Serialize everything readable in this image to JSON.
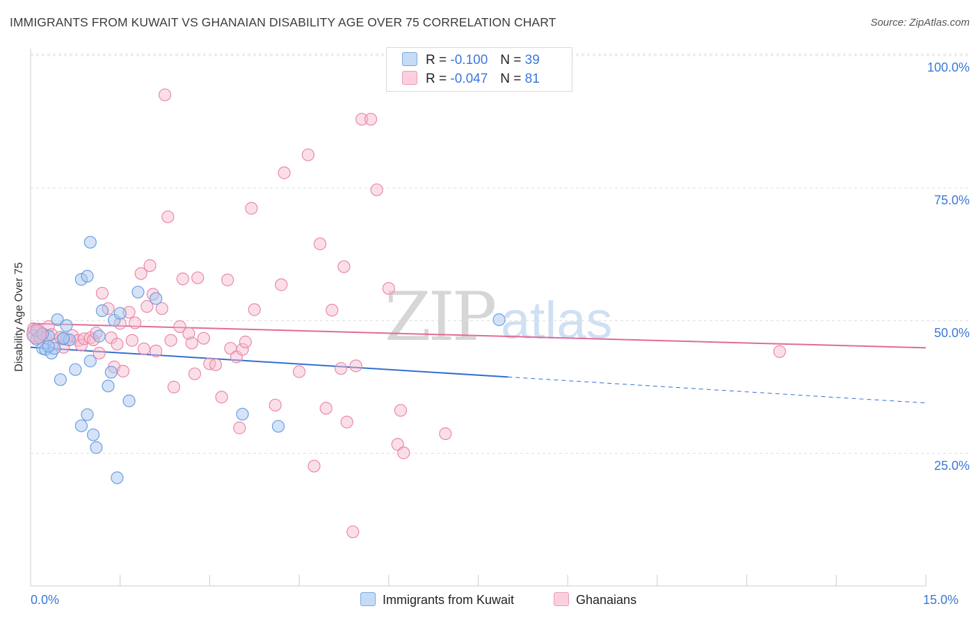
{
  "title": "IMMIGRANTS FROM KUWAIT VS GHANAIAN DISABILITY AGE OVER 75 CORRELATION CHART",
  "source": "Source: ZipAtlas.com",
  "watermark": {
    "zip": "ZIP",
    "atlas": "atlas"
  },
  "legend": {
    "rows": [
      {
        "r_label": "R =",
        "r_value": "-0.100",
        "n_label": "N =",
        "n_value": "39"
      },
      {
        "r_label": "R =",
        "r_value": "-0.047",
        "n_label": "N =",
        "n_value": "81"
      }
    ]
  },
  "bottom_legend": [
    "Immigrants from Kuwait",
    "Ghanaians"
  ],
  "colors": {
    "blue_fill": "#a9c8f0",
    "blue_stroke": "#6a9fe0",
    "blue_line": "#2f6fd0",
    "pink_fill": "#f6b8cc",
    "pink_stroke": "#ea87a8",
    "pink_line": "#e06a96",
    "tick_text": "#3a78d8",
    "grid": "#dddddd"
  },
  "chart_data": {
    "type": "scatter",
    "title": "IMMIGRANTS FROM KUWAIT VS GHANAIAN DISABILITY AGE OVER 75 CORRELATION CHART",
    "xlabel": "",
    "ylabel": "Disability Age Over 75",
    "xlim": [
      0,
      15
    ],
    "ylim": [
      0,
      102
    ],
    "x_tick_labels": [
      "0.0%",
      "15.0%"
    ],
    "y_tick_labels": [
      "25.0%",
      "50.0%",
      "75.0%",
      "100.0%"
    ],
    "y_ticks": [
      25,
      50,
      75,
      100
    ],
    "grid": true,
    "series": [
      {
        "name": "Immigrants from Kuwait",
        "color": "blue",
        "points": [
          [
            0.05,
            47.2
          ],
          [
            0.1,
            46.5
          ],
          [
            0.15,
            46.9
          ],
          [
            0.2,
            44.8
          ],
          [
            0.25,
            44.6
          ],
          [
            0.3,
            47.1
          ],
          [
            0.35,
            43.9
          ],
          [
            0.4,
            44.8
          ],
          [
            0.45,
            50.2
          ],
          [
            0.5,
            38.9
          ],
          [
            0.55,
            46.6
          ],
          [
            0.6,
            49.1
          ],
          [
            0.65,
            46.4
          ],
          [
            0.75,
            40.8
          ],
          [
            0.85,
            30.2
          ],
          [
            0.95,
            32.3
          ],
          [
            1.0,
            42.4
          ],
          [
            1.05,
            28.5
          ],
          [
            1.1,
            26.1
          ],
          [
            1.15,
            47.1
          ],
          [
            1.2,
            51.9
          ],
          [
            1.3,
            37.7
          ],
          [
            1.35,
            40.3
          ],
          [
            1.4,
            50.1
          ],
          [
            1.45,
            20.4
          ],
          [
            1.5,
            51.4
          ],
          [
            1.65,
            34.9
          ],
          [
            1.8,
            55.4
          ],
          [
            2.1,
            54.2
          ],
          [
            3.55,
            32.4
          ],
          [
            4.15,
            30.1
          ],
          [
            7.85,
            50.2
          ],
          [
            1.0,
            64.8
          ],
          [
            0.85,
            57.8
          ],
          [
            0.95,
            58.4
          ],
          [
            0.1,
            48.2
          ],
          [
            0.3,
            45.2
          ],
          [
            0.55,
            46.7
          ],
          [
            0.2,
            47.5
          ]
        ]
      },
      {
        "name": "Ghanaians",
        "color": "pink",
        "points": [
          [
            0.05,
            48.5
          ],
          [
            0.1,
            47.9
          ],
          [
            0.15,
            47.2
          ],
          [
            0.2,
            47.6
          ],
          [
            0.25,
            46.8
          ],
          [
            0.3,
            48.9
          ],
          [
            0.35,
            47.4
          ],
          [
            0.4,
            45.6
          ],
          [
            0.5,
            46.9
          ],
          [
            0.55,
            45.0
          ],
          [
            0.6,
            46.5
          ],
          [
            0.7,
            47.2
          ],
          [
            0.8,
            46.3
          ],
          [
            0.85,
            45.4
          ],
          [
            0.9,
            46.6
          ],
          [
            1.0,
            46.8
          ],
          [
            1.05,
            46.4
          ],
          [
            1.1,
            47.7
          ],
          [
            1.15,
            43.9
          ],
          [
            1.2,
            55.2
          ],
          [
            1.3,
            52.3
          ],
          [
            1.35,
            46.8
          ],
          [
            1.4,
            41.3
          ],
          [
            1.45,
            45.6
          ],
          [
            1.5,
            49.5
          ],
          [
            1.55,
            40.5
          ],
          [
            1.65,
            51.6
          ],
          [
            1.7,
            46.3
          ],
          [
            1.75,
            49.6
          ],
          [
            1.85,
            58.9
          ],
          [
            1.9,
            44.7
          ],
          [
            1.95,
            52.7
          ],
          [
            2.0,
            60.4
          ],
          [
            2.05,
            55.0
          ],
          [
            2.1,
            44.3
          ],
          [
            2.2,
            52.3
          ],
          [
            2.25,
            92.6
          ],
          [
            2.3,
            69.6
          ],
          [
            2.35,
            46.3
          ],
          [
            2.4,
            37.5
          ],
          [
            2.5,
            48.9
          ],
          [
            2.55,
            57.9
          ],
          [
            2.65,
            47.6
          ],
          [
            2.7,
            45.8
          ],
          [
            2.75,
            40.0
          ],
          [
            2.8,
            58.1
          ],
          [
            2.9,
            46.7
          ],
          [
            3.0,
            41.9
          ],
          [
            3.1,
            41.7
          ],
          [
            3.2,
            35.6
          ],
          [
            3.3,
            57.7
          ],
          [
            3.35,
            44.8
          ],
          [
            3.45,
            43.2
          ],
          [
            3.5,
            29.8
          ],
          [
            3.55,
            44.6
          ],
          [
            3.6,
            46.0
          ],
          [
            3.7,
            71.2
          ],
          [
            3.75,
            52.1
          ],
          [
            4.1,
            34.1
          ],
          [
            4.2,
            56.8
          ],
          [
            4.25,
            77.9
          ],
          [
            4.5,
            40.4
          ],
          [
            4.65,
            81.3
          ],
          [
            4.75,
            22.6
          ],
          [
            4.85,
            64.5
          ],
          [
            4.95,
            33.5
          ],
          [
            5.05,
            52.0
          ],
          [
            5.2,
            41.0
          ],
          [
            5.25,
            60.2
          ],
          [
            5.3,
            30.9
          ],
          [
            5.4,
            10.2
          ],
          [
            5.45,
            41.5
          ],
          [
            5.55,
            88.0
          ],
          [
            5.7,
            88.0
          ],
          [
            5.8,
            74.7
          ],
          [
            6.0,
            56.1
          ],
          [
            6.15,
            26.7
          ],
          [
            6.2,
            33.1
          ],
          [
            6.25,
            25.1
          ],
          [
            6.95,
            28.7
          ],
          [
            12.55,
            44.2
          ]
        ]
      }
    ],
    "trendlines": [
      {
        "series": "Immigrants from Kuwait",
        "x0": 0,
        "y0": 45.0,
        "x1": 8.0,
        "y1": 39.4,
        "dashed_to_x": 15,
        "dashed_y": 34.5
      },
      {
        "series": "Ghanaians",
        "x0": 0,
        "y0": 49.5,
        "x1": 15,
        "y1": 44.9
      }
    ]
  }
}
